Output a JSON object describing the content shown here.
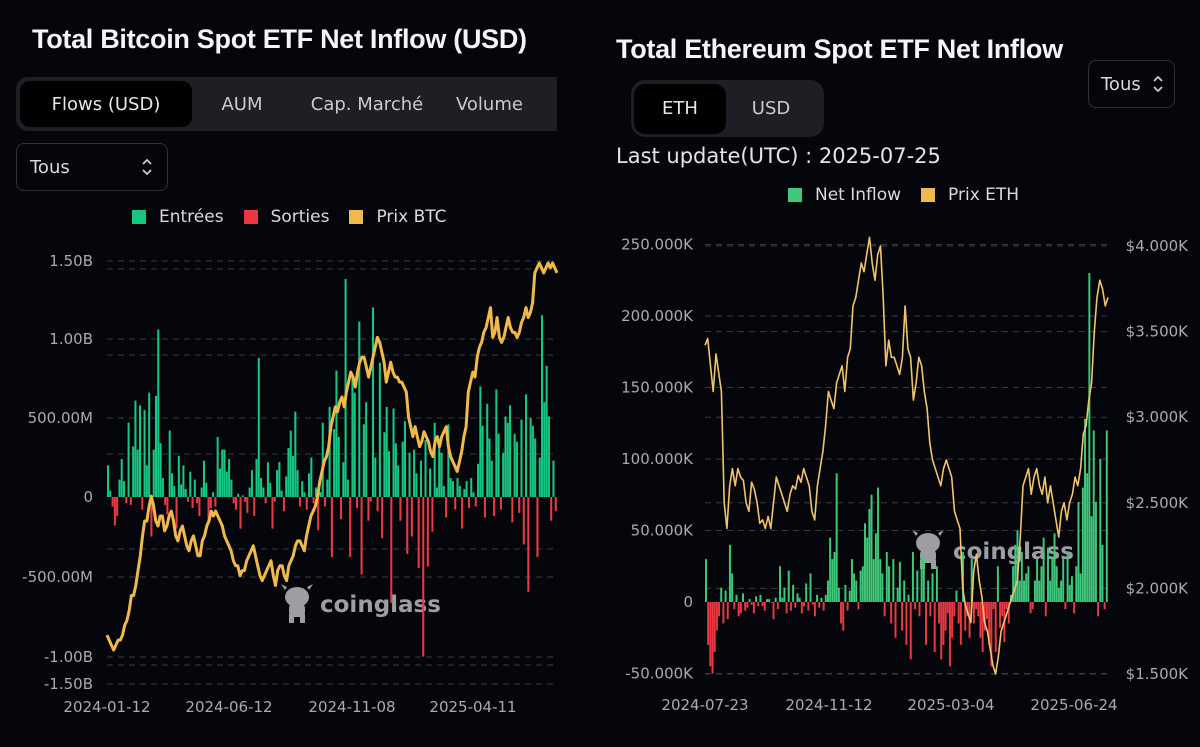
{
  "btc": {
    "title": "Total Bitcoin Spot ETF Net Inflow (USD)",
    "tabs": [
      {
        "label": "Flows (USD)",
        "active": true
      },
      {
        "label": "AUM",
        "active": false
      },
      {
        "label": "Cap. Marché",
        "active": false
      },
      {
        "label": "Volume",
        "active": false
      }
    ],
    "range_select": "Tous",
    "legend": [
      {
        "label": "Entrées",
        "color": "#16c784"
      },
      {
        "label": "Sorties",
        "color": "#ea3943"
      },
      {
        "label": "Prix BTC",
        "color": "#f0b94c"
      }
    ],
    "watermark": "coinglass"
  },
  "eth": {
    "title": "Total Ethereum Spot ETF Net Inflow",
    "tabs": [
      {
        "label": "ETH",
        "active": true
      },
      {
        "label": "USD",
        "active": false
      }
    ],
    "range_select": "Tous",
    "last_update": "Last update(UTC) : 2025-07-25",
    "legend": [
      {
        "label": "Net Inflow",
        "color": "#3ec97a"
      },
      {
        "label": "Prix ETH",
        "color": "#f0b94c"
      }
    ],
    "watermark": "coinglass"
  },
  "chart_data": [
    {
      "type": "bar",
      "title": "Total Bitcoin Spot ETF Net Inflow (USD)",
      "xlabel": "",
      "ylabel": "",
      "x_tick_labels": [
        "2024-01-12",
        "2024-06-12",
        "2024-11-08",
        "2025-04-11"
      ],
      "y_tick_labels": [
        "1.50B",
        "1.00B",
        "500.00M",
        "0",
        "-500.00M",
        "-1.00B",
        "-1.50B"
      ],
      "y_tick_values": [
        1500000000,
        1000000000,
        500000000,
        0,
        -500000000,
        -1000000000,
        -1500000000
      ],
      "ylim": [
        -1500000000,
        1500000000
      ],
      "x_range": [
        "2024-01-12",
        "2025-07-25"
      ],
      "grid": true,
      "legend_position": "top-center",
      "series": [
        {
          "name": "Entrées / Sorties",
          "kind": "bar",
          "unit": "USD (millions)",
          "values": [
            200,
            40,
            -60,
            -180,
            -120,
            110,
            240,
            100,
            -40,
            470,
            -50,
            320,
            610,
            300,
            580,
            -80,
            550,
            200,
            660,
            -250,
            300,
            640,
            1060,
            340,
            120,
            -50,
            -110,
            420,
            150,
            70,
            -200,
            260,
            80,
            200,
            50,
            -30,
            160,
            -70,
            110,
            -40,
            -120,
            60,
            230,
            90,
            -150,
            -70,
            30,
            -60,
            380,
            180,
            300,
            300,
            160,
            240,
            110,
            -40,
            -80,
            20,
            -200,
            10,
            -30,
            -100,
            60,
            170,
            -120,
            240,
            880,
            120,
            60,
            -40,
            220,
            90,
            -200,
            -30,
            170,
            220,
            40,
            -90,
            130,
            310,
            420,
            260,
            540,
            170,
            -60,
            100,
            30,
            -80,
            150,
            250,
            -40,
            60,
            -210,
            30,
            470,
            -60,
            110,
            570,
            -380,
            430,
            800,
            380,
            -140,
            220,
            1380,
            110,
            -380,
            780,
            660,
            -70,
            1110,
            -490,
            460,
            600,
            -150,
            -30,
            1200,
            250,
            -90,
            850,
            -260,
            410,
            570,
            290,
            -670,
            560,
            340,
            200,
            -150,
            350,
            480,
            -360,
            280,
            -250,
            300,
            150,
            -450,
            230,
            -1010,
            360,
            -440,
            180,
            -220,
            470,
            60,
            330,
            280,
            70,
            -130,
            460,
            120,
            100,
            -80,
            120,
            70,
            -200,
            50,
            100,
            -70,
            120,
            30,
            -60,
            210,
            700,
            450,
            -130,
            590,
            370,
            230,
            -120,
            680,
            400,
            -80,
            280,
            510,
            470,
            580,
            -160,
            400,
            350,
            -100,
            490,
            -300,
            650,
            -600,
            500,
            450,
            370,
            -380,
            250,
            1150,
            600,
            830,
            510,
            -150,
            230,
            -90
          ]
        },
        {
          "name": "Prix BTC",
          "kind": "line",
          "unit": "USD (thousands)",
          "values": [
            44,
            43,
            42,
            41,
            42,
            43,
            43,
            44,
            46,
            47,
            49,
            52,
            52,
            54,
            57,
            60,
            64,
            67,
            67,
            70,
            72,
            70,
            67,
            66,
            68,
            68,
            65,
            66,
            68,
            69,
            67,
            64,
            63,
            65,
            66,
            64,
            62,
            61,
            63,
            64,
            62,
            60,
            60,
            63,
            64,
            66,
            67,
            69,
            68,
            69,
            68,
            67,
            66,
            64,
            63,
            62,
            61,
            59,
            58,
            58,
            56,
            57,
            57,
            59,
            60,
            61,
            62,
            60,
            58,
            56,
            55,
            56,
            57,
            58,
            59,
            56,
            54,
            57,
            58,
            58,
            56,
            55,
            58,
            59,
            60,
            62,
            63,
            63,
            62,
            61,
            64,
            66,
            68,
            69,
            70,
            72,
            75,
            77,
            79,
            80,
            82,
            86,
            88,
            90,
            89,
            91,
            92,
            90,
            93,
            95,
            97,
            96,
            94,
            97,
            99,
            100,
            100,
            98,
            96,
            98,
            100,
            102,
            104,
            103,
            101,
            99,
            95,
            97,
            99,
            97,
            96,
            96,
            95,
            95,
            94,
            93,
            88,
            86,
            84,
            86,
            84,
            82,
            83,
            85,
            84,
            83,
            81,
            80,
            83,
            84,
            82,
            84,
            85,
            86,
            82,
            80,
            79,
            78,
            77,
            79,
            81,
            84,
            86,
            93,
            95,
            97,
            96,
            100,
            102,
            103,
            105,
            106,
            108,
            110,
            104,
            105,
            108,
            104,
            103,
            104,
            106,
            108,
            106,
            105,
            105,
            104,
            105,
            107,
            108,
            110,
            108,
            109,
            111,
            117,
            118,
            119,
            118,
            117,
            118,
            119,
            118,
            119,
            118,
            117
          ]
        }
      ]
    },
    {
      "type": "bar",
      "title": "Total Ethereum Spot ETF Net Inflow",
      "xlabel": "",
      "ylabel": "",
      "x_tick_labels": [
        "2024-07-23",
        "2024-11-12",
        "2025-03-04",
        "2025-06-24"
      ],
      "y_tick_labels": [
        "250.000K",
        "200.000K",
        "150.000K",
        "100.000K",
        "50.000K",
        "0",
        "-50.000K"
      ],
      "y_tick_values": [
        250000,
        200000,
        150000,
        100000,
        50000,
        0,
        -50000
      ],
      "y2_tick_labels": [
        "$4.000K",
        "$3.500K",
        "$3.000K",
        "$2.500K",
        "$2.000K",
        "$1.500K"
      ],
      "y2_tick_values": [
        4000,
        3500,
        3000,
        2500,
        2000,
        1500
      ],
      "ylim": [
        -50000,
        250000
      ],
      "y2lim": [
        1500,
        4000
      ],
      "x_range": [
        "2024-07-23",
        "2025-07-25"
      ],
      "grid": true,
      "legend_position": "top-center",
      "series": [
        {
          "name": "Net Inflow",
          "kind": "bar",
          "unit": "ETH (thousands)",
          "values": [
            30,
            -30,
            -45,
            -50,
            -35,
            -20,
            -10,
            10,
            -15,
            8,
            -12,
            40,
            20,
            -5,
            5,
            -10,
            -8,
            6,
            -6,
            -4,
            2,
            -2,
            -8,
            4,
            -3,
            5,
            -3,
            -6,
            2,
            2,
            0,
            -12,
            3,
            -5,
            25,
            3,
            10,
            -8,
            22,
            -6,
            12,
            -4,
            6,
            3,
            -8,
            -3,
            13,
            -6,
            20,
            -2,
            -10,
            5,
            -4,
            3,
            -6,
            5,
            15,
            45,
            30,
            35,
            90,
            10,
            -15,
            -20,
            12,
            -6,
            8,
            30,
            20,
            15,
            -5,
            22,
            25,
            55,
            45,
            65,
            75,
            30,
            48,
            80,
            30,
            20,
            -10,
            35,
            25,
            -15,
            30,
            -25,
            10,
            28,
            -20,
            15,
            -30,
            5,
            -40,
            35,
            -5,
            22,
            -10,
            32,
            30,
            -30,
            15,
            -10,
            20,
            -35,
            25,
            -15,
            -40,
            -30,
            -20,
            -8,
            -45,
            -25,
            -10,
            8,
            -15,
            -30,
            35,
            -20,
            -10,
            -25,
            30,
            -15,
            -5,
            -10,
            -25,
            -35,
            -20,
            -12,
            -30,
            -45,
            -5,
            -35,
            25,
            -18,
            -10,
            -28,
            -5,
            -15,
            5,
            25,
            40,
            50,
            15,
            35,
            15,
            20,
            25,
            -8,
            -5,
            15,
            30,
            15,
            25,
            45,
            -10,
            38,
            15,
            30,
            48,
            25,
            10,
            15,
            30,
            -5,
            35,
            12,
            18,
            -8,
            25,
            70,
            20,
            80,
            128,
            90,
            230,
            60,
            120,
            70,
            -10,
            100,
            40,
            -5,
            120
          ]
        },
        {
          "name": "Prix ETH",
          "kind": "line",
          "unit": "USD",
          "values": [
            3420,
            3460,
            3300,
            3150,
            3370,
            3260,
            3150,
            2500,
            2350,
            2600,
            2700,
            2600,
            2700,
            2650,
            2630,
            2500,
            2450,
            2620,
            2580,
            2500,
            2380,
            2400,
            2350,
            2420,
            2350,
            2500,
            2650,
            2600,
            2550,
            2500,
            2450,
            2550,
            2600,
            2580,
            2660,
            2620,
            2700,
            2650,
            2600,
            2450,
            2400,
            2600,
            2700,
            2800,
            2950,
            3150,
            3100,
            3050,
            3200,
            3250,
            3300,
            3150,
            3350,
            3400,
            3650,
            3700,
            3800,
            3900,
            3850,
            3950,
            4050,
            3900,
            3800,
            3950,
            4000,
            3700,
            3300,
            3450,
            3350,
            3350,
            3300,
            3250,
            3350,
            3650,
            3400,
            3350,
            3100,
            3200,
            3350,
            3300,
            3150,
            3050,
            2850,
            2750,
            2700,
            2650,
            2600,
            2700,
            2750,
            2700,
            2650,
            2450,
            2400,
            2350,
            2000,
            1900,
            1850,
            1800,
            2100,
            2200,
            2050,
            1950,
            1800,
            1750,
            1650,
            1550,
            1500,
            1600,
            1750,
            1800,
            1850,
            1900,
            1950,
            2000,
            2050,
            2300,
            2600,
            2650,
            2700,
            2550,
            2650,
            2700,
            2600,
            2550,
            2650,
            2500,
            2600,
            2500,
            2400,
            2300,
            2450,
            2500,
            2400,
            2500,
            2550,
            2650,
            2600,
            2700,
            2900,
            2950,
            3100,
            3200,
            3500,
            3700,
            3800,
            3750,
            3650,
            3700
          ]
        }
      ]
    }
  ]
}
